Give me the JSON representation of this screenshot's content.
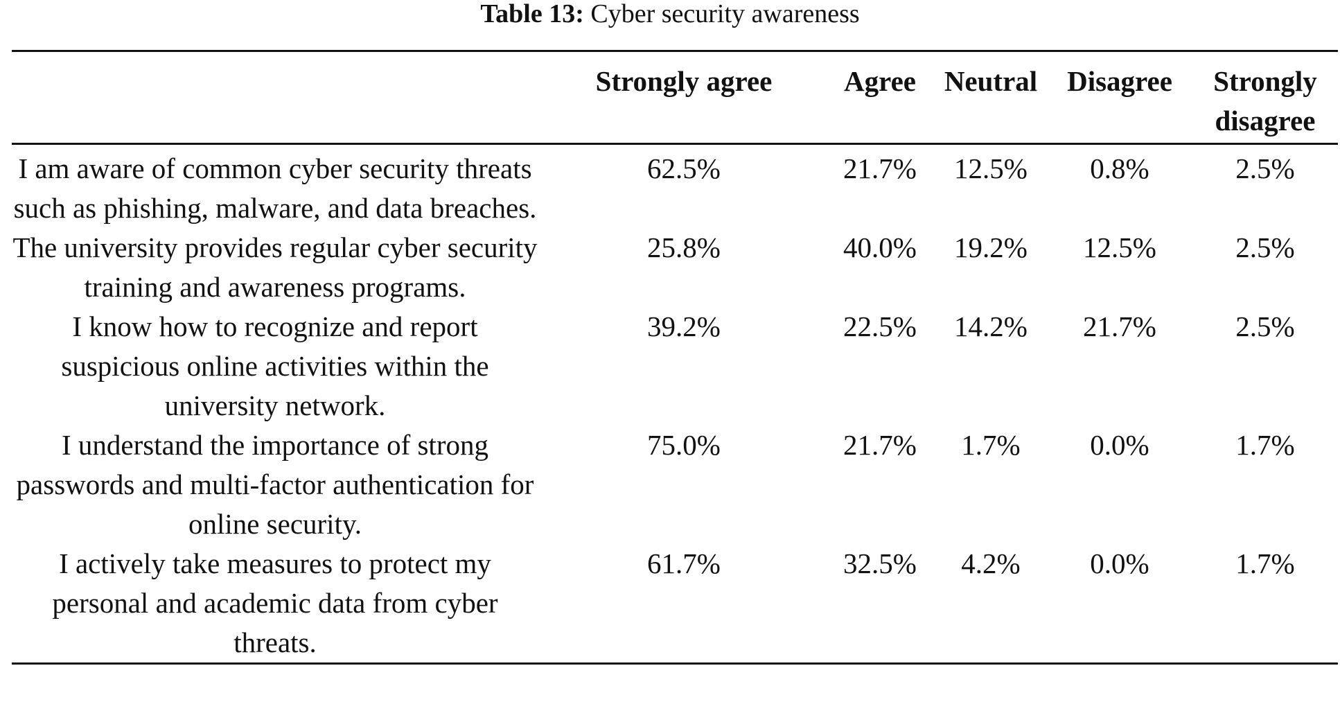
{
  "caption": {
    "label": "Table 13:",
    "title": "Cyber security awareness"
  },
  "table": {
    "headers": [
      "",
      "Strongly agree",
      "Agree",
      "Neutral",
      "Disagree",
      "Strongly disagree"
    ],
    "rows": [
      {
        "statement": "I am aware of common cyber security threats such as phishing, malware, and data breaches.",
        "values": [
          "62.5%",
          "21.7%",
          "12.5%",
          "0.8%",
          "2.5%"
        ]
      },
      {
        "statement": "The university provides regular cyber security training and awareness programs.",
        "values": [
          "25.8%",
          "40.0%",
          "19.2%",
          "12.5%",
          "2.5%"
        ]
      },
      {
        "statement": "I know how to recognize and report suspicious online activities within the university network.",
        "values": [
          "39.2%",
          "22.5%",
          "14.2%",
          "21.7%",
          "2.5%"
        ]
      },
      {
        "statement": "I understand the importance of strong passwords and multi-factor authentication for online security.",
        "values": [
          "75.0%",
          "21.7%",
          "1.7%",
          "0.0%",
          "1.7%"
        ]
      },
      {
        "statement": "I actively take measures to protect my personal and academic data from cyber threats.",
        "values": [
          "61.7%",
          "32.5%",
          "4.2%",
          "0.0%",
          "1.7%"
        ]
      }
    ]
  }
}
